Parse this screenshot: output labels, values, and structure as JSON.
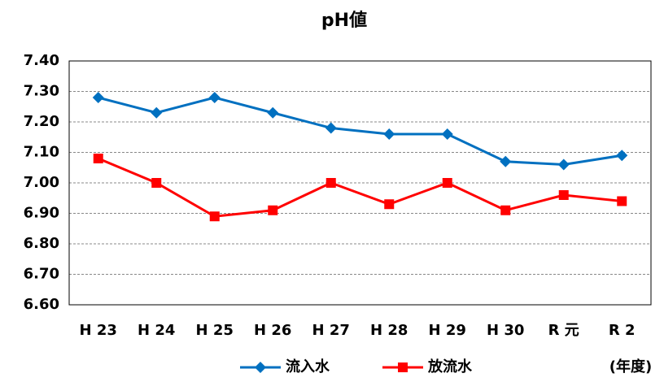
{
  "chart_data": {
    "type": "line",
    "title": "pH値",
    "x_label": "(年度)",
    "categories": [
      "H 23",
      "H 24",
      "H 25",
      "H 26",
      "H 27",
      "H 28",
      "H 29",
      "H 30",
      "R 元",
      "R 2"
    ],
    "series": [
      {
        "name": "流入水",
        "color": "#0070c0",
        "marker": "diamond",
        "values": [
          7.28,
          7.23,
          7.28,
          7.23,
          7.18,
          7.16,
          7.16,
          7.07,
          7.06,
          7.09
        ]
      },
      {
        "name": "放流水",
        "color": "#ff0000",
        "marker": "square",
        "values": [
          7.08,
          7.0,
          6.89,
          6.91,
          7.0,
          6.93,
          7.0,
          6.91,
          6.96,
          6.94
        ]
      }
    ],
    "ylim": [
      6.6,
      7.4
    ],
    "yticks": [
      {
        "value": 6.6,
        "label": "6.60"
      },
      {
        "value": 6.7,
        "label": "6.70"
      },
      {
        "value": 6.8,
        "label": "6.80"
      },
      {
        "value": 6.9,
        "label": "6.90"
      },
      {
        "value": 7.0,
        "label": "7.00"
      },
      {
        "value": 7.1,
        "label": "7.10"
      },
      {
        "value": 7.2,
        "label": "7.20"
      },
      {
        "value": 7.3,
        "label": "7.30"
      },
      {
        "value": 7.4,
        "label": "7.40"
      }
    ],
    "grid": true,
    "legend": "bottom"
  }
}
